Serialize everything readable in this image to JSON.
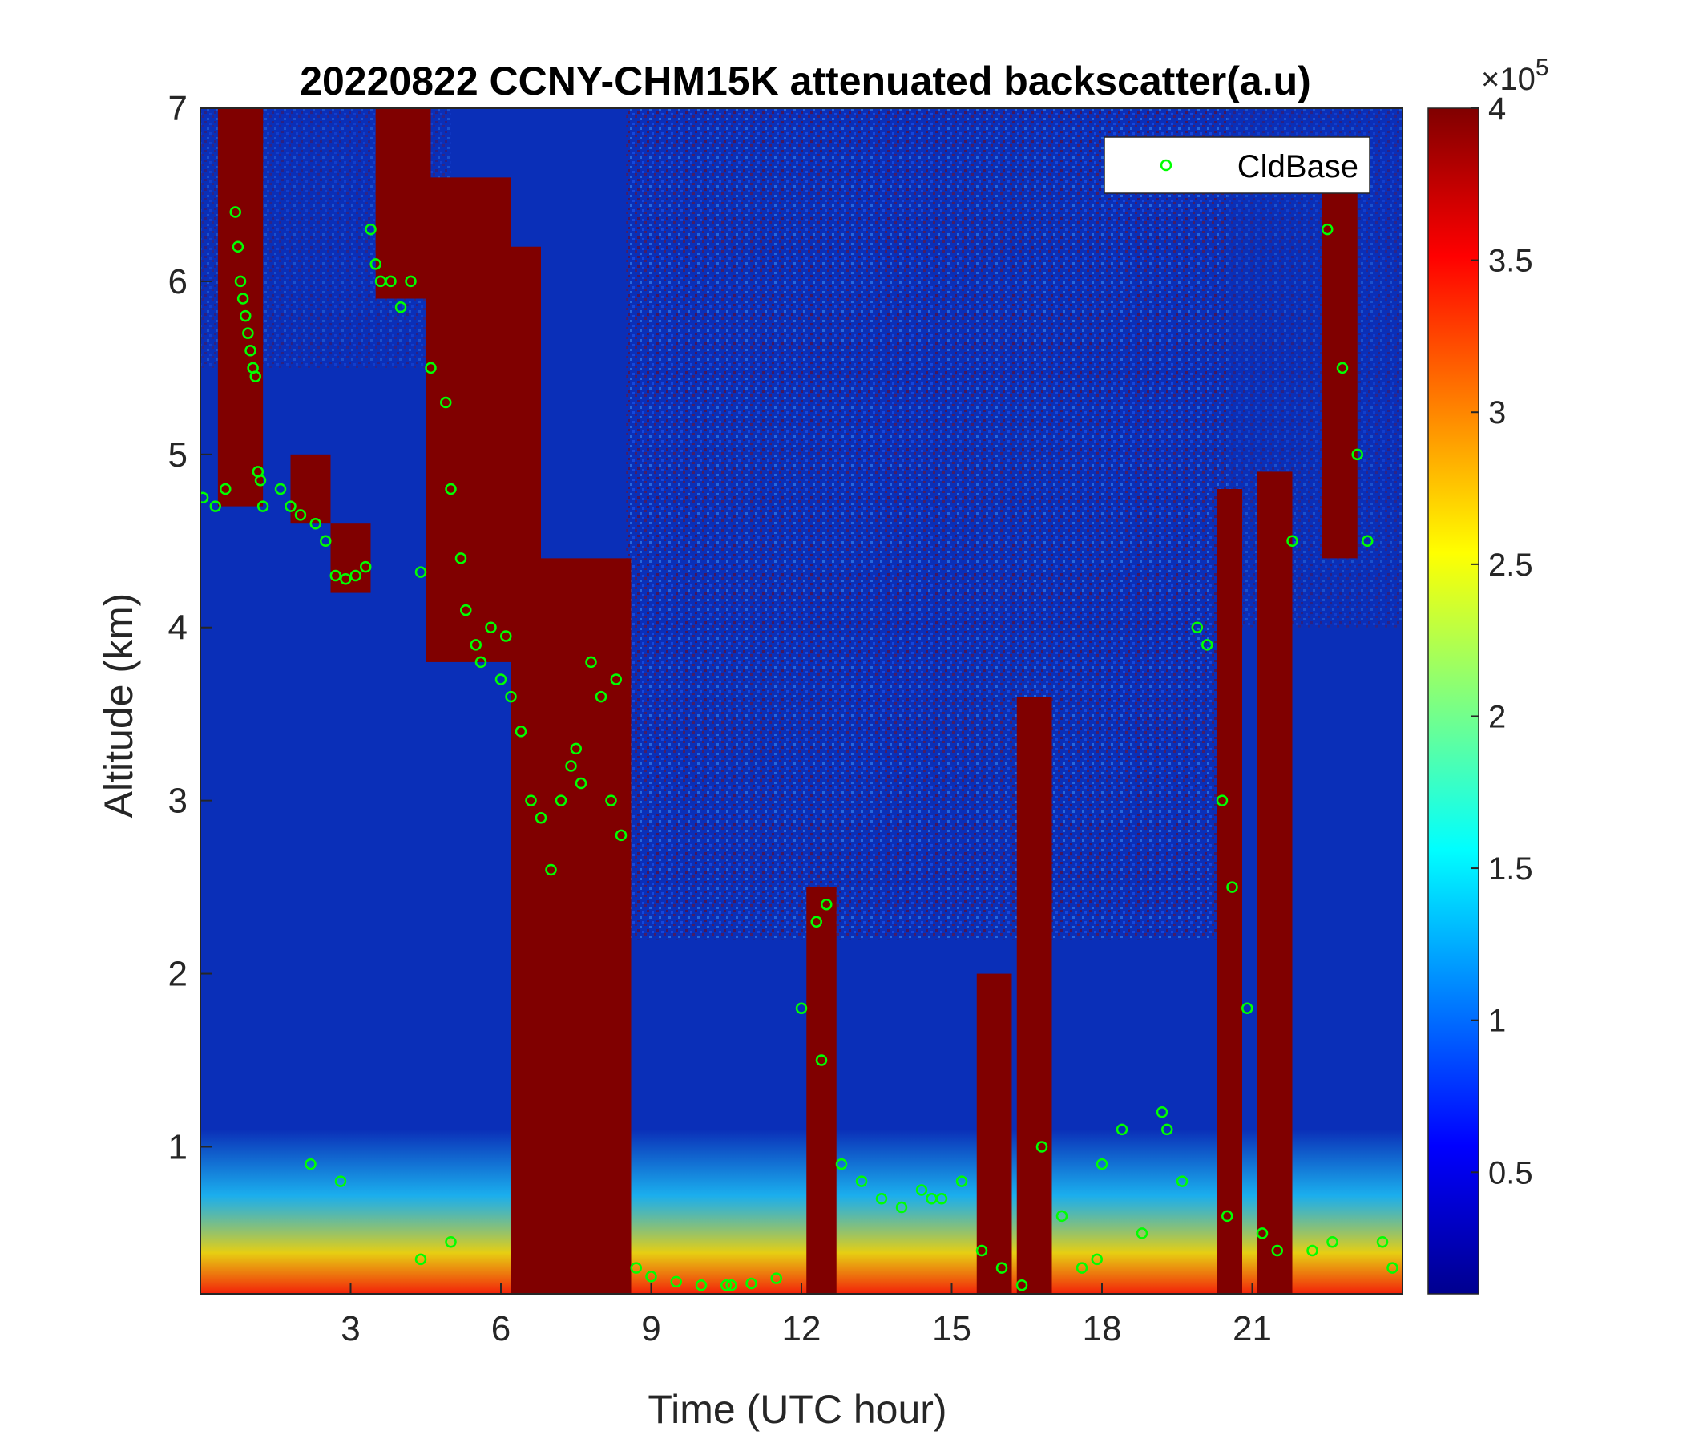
{
  "chart_data": {
    "type": "heatmap",
    "title": "20220822 CCNY-CHM15K attenuated backscatter(a.u)",
    "xlabel": "Time (UTC hour)",
    "ylabel": "Altitude (km)",
    "xlim": [
      0,
      24
    ],
    "ylim": [
      0.15,
      7
    ],
    "x_ticks": [
      3,
      6,
      9,
      12,
      15,
      18,
      21
    ],
    "y_ticks": [
      1,
      2,
      3,
      4,
      5,
      6,
      7
    ],
    "colormap": "jet",
    "colorbar": {
      "range": [
        0.1,
        4
      ],
      "ticks": [
        0.5,
        1,
        1.5,
        2,
        2.5,
        3,
        3.5,
        4
      ],
      "exponent_label": "×10",
      "exponent_power": "5"
    },
    "colors": {
      "saturated": "#800000",
      "background_low": "#0a2fb8",
      "marker": "#00ff00"
    },
    "legend": {
      "position": "top-right",
      "entries": [
        "CldBase"
      ]
    },
    "cloud_regions": [
      {
        "t0": 0.35,
        "t1": 1.25,
        "z0": 4.7,
        "z1": 7.0
      },
      {
        "t0": 3.5,
        "t1": 4.6,
        "z0": 5.9,
        "z1": 7.0
      },
      {
        "t0": 4.5,
        "t1": 6.2,
        "z0": 3.8,
        "z1": 6.6
      },
      {
        "t0": 6.2,
        "t1": 6.8,
        "z0": 0.15,
        "z1": 6.2
      },
      {
        "t0": 6.8,
        "t1": 8.6,
        "z0": 0.15,
        "z1": 4.4
      },
      {
        "t0": 1.8,
        "t1": 2.6,
        "z0": 4.6,
        "z1": 5.0
      },
      {
        "t0": 2.6,
        "t1": 3.4,
        "z0": 4.2,
        "z1": 4.6
      },
      {
        "t0": 12.1,
        "t1": 12.7,
        "z0": 0.15,
        "z1": 2.5
      },
      {
        "t0": 15.5,
        "t1": 16.2,
        "z0": 0.15,
        "z1": 2.0
      },
      {
        "t0": 16.3,
        "t1": 17.0,
        "z0": 0.15,
        "z1": 3.6
      },
      {
        "t0": 20.3,
        "t1": 20.8,
        "z0": 0.15,
        "z1": 4.8
      },
      {
        "t0": 21.1,
        "t1": 21.8,
        "z0": 0.15,
        "z1": 4.9
      },
      {
        "t0": 22.4,
        "t1": 23.1,
        "z0": 4.4,
        "z1": 6.6
      }
    ],
    "series": [
      {
        "name": "CldBase",
        "marker": "o",
        "x": [
          0.05,
          0.3,
          0.5,
          0.7,
          0.75,
          0.8,
          0.85,
          0.9,
          0.95,
          1.0,
          1.05,
          1.1,
          1.15,
          1.2,
          1.25,
          1.6,
          1.8,
          2.0,
          2.3,
          2.5,
          2.7,
          2.9,
          3.1,
          3.3,
          3.4,
          3.5,
          3.6,
          3.8,
          4.0,
          4.2,
          4.4,
          4.6,
          4.9,
          5.0,
          5.2,
          5.3,
          5.5,
          5.6,
          5.8,
          6.0,
          6.2,
          6.4,
          6.6,
          6.8,
          7.0,
          7.2,
          7.4,
          7.6,
          7.8,
          8.0,
          8.2,
          8.4,
          8.7,
          9.0,
          9.5,
          10.0,
          10.5,
          11.0,
          11.5,
          12.0,
          12.3,
          12.5,
          12.8,
          13.2,
          13.6,
          14.0,
          14.4,
          14.8,
          15.2,
          15.6,
          16.0,
          16.4,
          16.8,
          17.2,
          17.6,
          18.0,
          18.4,
          18.8,
          19.2,
          19.6,
          19.9,
          20.1,
          20.4,
          20.6,
          20.9,
          21.2,
          21.5,
          21.8,
          22.2,
          22.5,
          22.8,
          23.1,
          23.3,
          23.6,
          23.8,
          2.2,
          2.8,
          4.4,
          5.0,
          6.1,
          7.5,
          8.3,
          10.6,
          12.4,
          14.6,
          17.9,
          19.3,
          20.5,
          22.6
        ],
        "y": [
          4.75,
          4.7,
          4.8,
          6.4,
          6.2,
          6.0,
          5.9,
          5.8,
          5.7,
          5.6,
          5.5,
          5.45,
          4.9,
          4.85,
          4.7,
          4.8,
          4.7,
          4.65,
          4.6,
          4.5,
          4.3,
          4.28,
          4.3,
          4.35,
          6.3,
          6.1,
          6.0,
          6.0,
          5.85,
          6.0,
          4.32,
          5.5,
          5.3,
          4.8,
          4.4,
          4.1,
          3.9,
          3.8,
          4.0,
          3.7,
          3.6,
          3.4,
          3.0,
          2.9,
          2.6,
          3.0,
          3.2,
          3.1,
          3.8,
          3.6,
          3.0,
          2.8,
          0.3,
          0.25,
          0.22,
          0.2,
          0.2,
          0.21,
          0.24,
          1.8,
          2.3,
          2.4,
          0.9,
          0.8,
          0.7,
          0.65,
          0.75,
          0.7,
          0.8,
          0.4,
          0.3,
          0.2,
          1.0,
          0.6,
          0.3,
          0.9,
          1.1,
          0.5,
          1.2,
          0.8,
          4.0,
          3.9,
          3.0,
          2.5,
          1.8,
          0.5,
          0.4,
          4.5,
          0.4,
          6.3,
          5.5,
          5.0,
          4.5,
          0.45,
          0.3,
          0.9,
          0.8,
          0.35,
          0.45,
          3.95,
          3.3,
          3.7,
          0.2,
          1.5,
          0.7,
          0.35,
          1.1,
          0.6,
          0.45
        ]
      }
    ]
  }
}
